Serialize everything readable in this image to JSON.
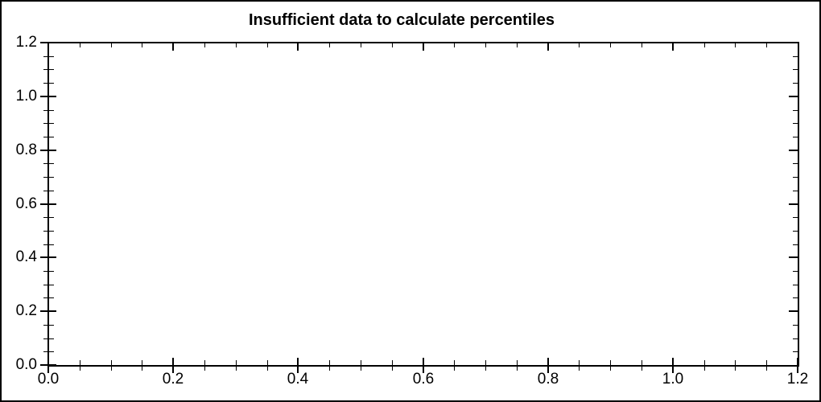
{
  "window": {
    "background_color": "#ffffff",
    "border_color": "#000000"
  },
  "chart_data": {
    "type": "scatter",
    "title": "Insufficient data to calculate percentiles",
    "series": [],
    "xlabel": "",
    "ylabel": "",
    "xlim": [
      0,
      1.2
    ],
    "ylim": [
      0,
      1.2
    ],
    "x_major_ticks": [
      0.0,
      0.2,
      0.4,
      0.6,
      0.8,
      1.0,
      1.2
    ],
    "y_major_ticks": [
      0.0,
      0.2,
      0.4,
      0.6,
      0.8,
      1.0,
      1.2
    ],
    "x_tick_labels": [
      "0.0",
      "0.2",
      "0.4",
      "0.6",
      "0.8",
      "1.0",
      "1.2"
    ],
    "y_tick_labels": [
      "0.0",
      "0.2",
      "0.4",
      "0.6",
      "0.8",
      "1.0",
      "1.2"
    ],
    "minor_tick_interval": 0.05,
    "grid": false,
    "legend_position": "none",
    "frame": "box",
    "axis_color": "#000000",
    "title_color": "#000000"
  }
}
